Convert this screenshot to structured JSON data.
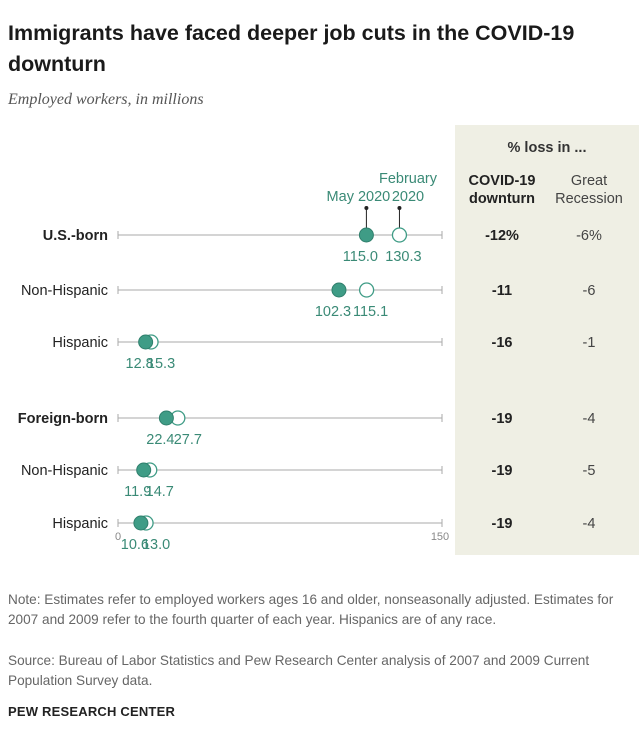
{
  "title": "Immigrants have faced deeper job cuts in the COVID-19 downturn",
  "subtitle": "Employed workers, in millions",
  "colors": {
    "may": "#3f9c86",
    "label": "#3a8a76",
    "panel": "#efefe4",
    "line": "#aaaaaa"
  },
  "chart_data": {
    "type": "dot",
    "x_range": [
      0,
      150
    ],
    "x_ticks": [
      "0",
      "150"
    ],
    "legend": {
      "may": "May 2020",
      "feb": "February 2020"
    },
    "panel_header": "% loss in ...",
    "col_headers": {
      "covid": "COVID-19 downturn",
      "recession": "Great Recession"
    },
    "rows": [
      {
        "label": "U.S.-born",
        "bold": true,
        "may": 115.0,
        "may_label": "115.0",
        "feb": 130.3,
        "feb_label": "130.3",
        "covid": "-12%",
        "recession": "-6%"
      },
      {
        "label": "Non-Hispanic",
        "bold": false,
        "may": 102.3,
        "may_label": "102.3",
        "feb": 115.1,
        "feb_label": "115.1",
        "covid": "-11",
        "recession": "-6"
      },
      {
        "label": "Hispanic",
        "bold": false,
        "may": 12.8,
        "may_label": "12.8",
        "feb": 15.3,
        "feb_label": "15.3",
        "covid": "-16",
        "recession": "-1"
      },
      {
        "label": "Foreign-born",
        "bold": true,
        "may": 22.4,
        "may_label": "22.4",
        "feb": 27.7,
        "feb_label": "27.7",
        "covid": "-19",
        "recession": "-4"
      },
      {
        "label": "Non-Hispanic",
        "bold": false,
        "may": 11.9,
        "may_label": "11.9",
        "feb": 14.7,
        "feb_label": "14.7",
        "covid": "-19",
        "recession": "-5"
      },
      {
        "label": "Hispanic",
        "bold": false,
        "may": 10.6,
        "may_label": "10.6",
        "feb": 13.0,
        "feb_label": "13.0",
        "covid": "-19",
        "recession": "-4"
      }
    ]
  },
  "note": "Note: Estimates refer to employed workers ages 16 and older, nonseasonally adjusted. Estimates for 2007 and 2009 refer to the fourth quarter of each year. Hispanics are of any race.",
  "source": "Source: Bureau of Labor Statistics and Pew Research Center analysis of 2007 and 2009 Current Population Survey data.",
  "org": "PEW RESEARCH CENTER"
}
